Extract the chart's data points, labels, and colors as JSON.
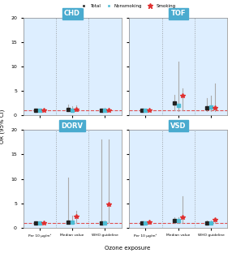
{
  "panels": [
    "CHD",
    "TOF",
    "DORV",
    "VSD"
  ],
  "legend_labels": [
    "Total",
    "Nonsmoking",
    "Smoking"
  ],
  "legend_colors": [
    "#222222",
    "#4dbcd4",
    "#e03030"
  ],
  "xlabel": "Ozone exposure",
  "ylabel": "OR (95% CI)",
  "background_color": "#ddeeff",
  "panel_title_bg": "#4aabcf",
  "panel_title_color": "white",
  "ref_line_y": 1.0,
  "ref_line_color": "#e05050",
  "xtick_labels": [
    "Per 10 μg/m³",
    "Median value",
    "WHO guideline"
  ],
  "vline_positions": [
    1.5,
    2.5
  ],
  "xlim": [
    0.5,
    3.5
  ],
  "x_positions": [
    1,
    2,
    3
  ],
  "point_colors": [
    "#222222",
    "#4dbcd4",
    "#e03030"
  ],
  "offsets": [
    -0.12,
    0.0,
    0.12
  ],
  "CHD": {
    "ylim": [
      0,
      20
    ],
    "yticks": [
      0,
      5,
      10,
      15,
      20
    ],
    "total": {
      "y": [
        1.0,
        1.2,
        1.0
      ],
      "lo": [
        0.85,
        0.9,
        0.85
      ],
      "hi": [
        1.2,
        2.2,
        1.4
      ]
    },
    "nonsmoking": {
      "y": [
        1.0,
        1.1,
        1.05
      ],
      "lo": [
        0.85,
        0.85,
        0.85
      ],
      "hi": [
        1.2,
        1.8,
        1.5
      ]
    },
    "smoking": {
      "y": [
        1.0,
        1.2,
        1.05
      ],
      "lo": [
        0.85,
        0.9,
        0.85
      ],
      "hi": [
        1.2,
        2.0,
        1.6
      ]
    }
  },
  "TOF": {
    "ylim": [
      0,
      20
    ],
    "yticks": [
      0,
      5,
      10,
      15,
      20
    ],
    "total": {
      "y": [
        1.0,
        2.5,
        1.6
      ],
      "lo": [
        0.85,
        1.0,
        0.9
      ],
      "hi": [
        1.3,
        4.2,
        3.5
      ]
    },
    "nonsmoking": {
      "y": [
        1.05,
        2.0,
        1.7
      ],
      "lo": [
        0.85,
        0.9,
        0.85
      ],
      "hi": [
        1.3,
        11.0,
        4.0
      ]
    },
    "smoking": {
      "y": [
        1.05,
        4.0,
        1.6
      ],
      "lo": [
        0.85,
        1.0,
        0.9
      ],
      "hi": [
        1.3,
        5.5,
        6.5
      ]
    }
  },
  "DORV": {
    "ylim": [
      0,
      20
    ],
    "yticks": [
      0,
      5,
      10,
      15,
      20
    ],
    "total": {
      "y": [
        0.95,
        1.2,
        1.0
      ],
      "lo": [
        0.8,
        0.9,
        0.8
      ],
      "hi": [
        1.15,
        10.2,
        18.0
      ]
    },
    "nonsmoking": {
      "y": [
        0.9,
        1.05,
        1.0
      ],
      "lo": [
        0.75,
        0.85,
        0.85
      ],
      "hi": [
        1.1,
        2.5,
        1.5
      ]
    },
    "smoking": {
      "y": [
        0.95,
        2.3,
        4.8
      ],
      "lo": [
        0.8,
        1.0,
        1.2
      ],
      "hi": [
        1.15,
        3.5,
        18.0
      ]
    }
  },
  "VSD": {
    "ylim": [
      0,
      20
    ],
    "yticks": [
      0,
      5,
      10,
      15,
      20
    ],
    "total": {
      "y": [
        0.9,
        1.4,
        1.0
      ],
      "lo": [
        0.75,
        0.95,
        0.85
      ],
      "hi": [
        1.1,
        2.2,
        1.5
      ]
    },
    "nonsmoking": {
      "y": [
        0.9,
        1.5,
        1.0
      ],
      "lo": [
        0.75,
        0.9,
        0.85
      ],
      "hi": [
        1.1,
        2.2,
        1.4
      ]
    },
    "smoking": {
      "y": [
        1.05,
        2.2,
        1.6
      ],
      "lo": [
        0.85,
        0.9,
        0.9
      ],
      "hi": [
        1.3,
        6.5,
        2.0
      ]
    }
  }
}
